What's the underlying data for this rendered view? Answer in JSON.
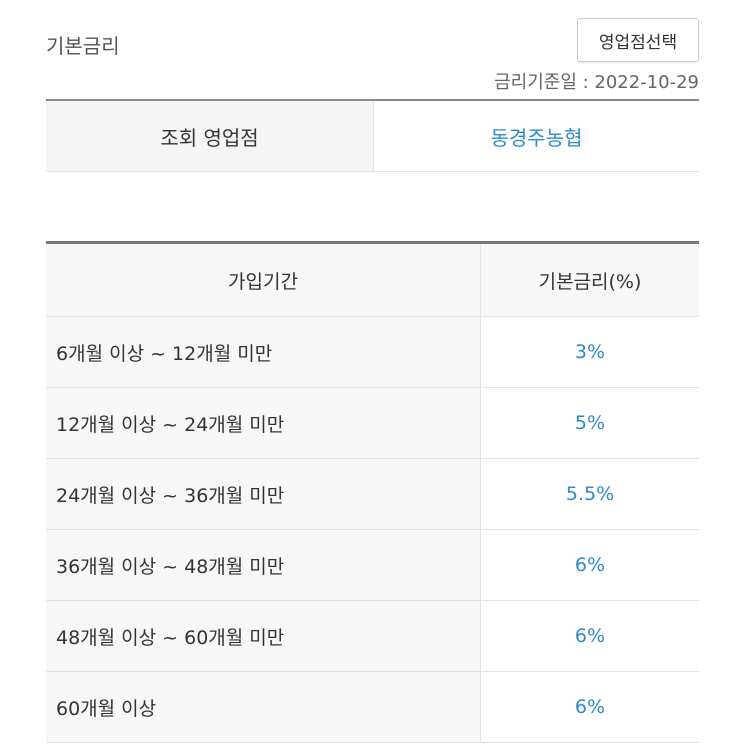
{
  "header": {
    "title": "기본금리",
    "select_branch_button": "영업점선택",
    "rate_date": "금리기준일 : 2022-10-29"
  },
  "branch": {
    "label": "조회 영업점",
    "value": "동경주농협"
  },
  "table": {
    "headers": [
      "가입기간",
      "기본금리(%)"
    ],
    "rows": [
      {
        "period": "6개월 이상 ~ 12개월 미만",
        "rate": "3%"
      },
      {
        "period": "12개월 이상 ~ 24개월 미만",
        "rate": "5%"
      },
      {
        "period": "24개월 이상 ~ 36개월 미만",
        "rate": "5.5%"
      },
      {
        "period": "36개월 이상 ~ 48개월 미만",
        "rate": "6%"
      },
      {
        "period": "48개월 이상 ~ 60개월 미만",
        "rate": "6%"
      },
      {
        "period": "60개월 이상",
        "rate": "6%"
      }
    ]
  },
  "colors": {
    "accent": "#2d8bc8"
  }
}
